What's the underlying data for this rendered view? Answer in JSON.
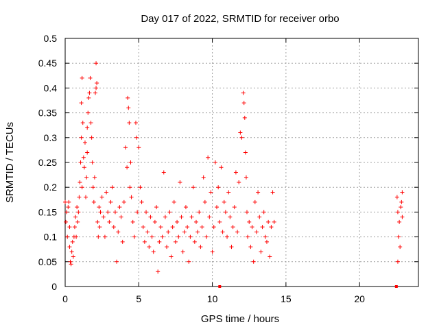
{
  "chart_data": {
    "type": "scatter",
    "title": "Day 017 of 2022, SRMTID for receiver orbo",
    "xlabel": "GPS time / hours",
    "ylabel": "SRMTID / TECUs",
    "xlim": [
      0,
      24
    ],
    "ylim": [
      0,
      0.5
    ],
    "x_ticks": [
      0,
      5,
      10,
      15,
      20
    ],
    "y_ticks": [
      0,
      0.05,
      0.1,
      0.15,
      0.2,
      0.25,
      0.3,
      0.35,
      0.4,
      0.45,
      0.5
    ],
    "x_tick_labels": [
      "0",
      "5",
      "10",
      "15",
      "20"
    ],
    "y_tick_labels": [
      "0",
      "0.05",
      "0.1",
      "0.15",
      "0.2",
      "0.25",
      "0.3",
      "0.35",
      "0.4",
      "0.45",
      "0.5"
    ],
    "grid": true,
    "marker": "+",
    "colors": {
      "points": "#ff0000",
      "grid": "#a0a0a0",
      "axes": "#000000"
    },
    "series": [
      {
        "points": [
          [
            0.0,
            0.17
          ],
          [
            0.05,
            0.13
          ],
          [
            0.1,
            0.15
          ],
          [
            0.15,
            0.1
          ],
          [
            0.2,
            0.16
          ],
          [
            0.25,
            0.17
          ],
          [
            0.3,
            0.12
          ],
          [
            0.3,
            0.08
          ],
          [
            0.35,
            0.05
          ],
          [
            0.4,
            0.045
          ],
          [
            0.45,
            0.07
          ],
          [
            0.5,
            0.09
          ],
          [
            0.55,
            0.06
          ],
          [
            0.6,
            0.1
          ],
          [
            0.65,
            0.12
          ],
          [
            0.7,
            0.14
          ],
          [
            0.75,
            0.1
          ],
          [
            0.8,
            0.16
          ],
          [
            0.85,
            0.13
          ],
          [
            0.9,
            0.15
          ],
          [
            0.95,
            0.18
          ],
          [
            1.0,
            0.21
          ],
          [
            1.05,
            0.25
          ],
          [
            1.1,
            0.3
          ],
          [
            1.1,
            0.37
          ],
          [
            1.15,
            0.42
          ],
          [
            1.15,
            0.2
          ],
          [
            1.2,
            0.33
          ],
          [
            1.25,
            0.26
          ],
          [
            1.3,
            0.24
          ],
          [
            1.35,
            0.29
          ],
          [
            1.4,
            0.18
          ],
          [
            1.45,
            0.22
          ],
          [
            1.5,
            0.27
          ],
          [
            1.5,
            0.32
          ],
          [
            1.55,
            0.35
          ],
          [
            1.6,
            0.38
          ],
          [
            1.65,
            0.39
          ],
          [
            1.7,
            0.42
          ],
          [
            1.75,
            0.33
          ],
          [
            1.8,
            0.3
          ],
          [
            1.85,
            0.25
          ],
          [
            1.9,
            0.2
          ],
          [
            1.95,
            0.17
          ],
          [
            2.0,
            0.22
          ],
          [
            2.05,
            0.39
          ],
          [
            2.1,
            0.4
          ],
          [
            2.1,
            0.45
          ],
          [
            2.15,
            0.41
          ],
          [
            2.2,
            0.13
          ],
          [
            2.25,
            0.1
          ],
          [
            2.3,
            0.16
          ],
          [
            2.35,
            0.12
          ],
          [
            2.4,
            0.15
          ],
          [
            2.5,
            0.18
          ],
          [
            2.6,
            0.14
          ],
          [
            2.7,
            0.1
          ],
          [
            2.8,
            0.19
          ],
          [
            2.9,
            0.15
          ],
          [
            3.0,
            0.13
          ],
          [
            3.1,
            0.17
          ],
          [
            3.2,
            0.2
          ],
          [
            3.3,
            0.12
          ],
          [
            3.4,
            0.15
          ],
          [
            3.5,
            0.05
          ],
          [
            3.6,
            0.11
          ],
          [
            3.7,
            0.16
          ],
          [
            3.8,
            0.14
          ],
          [
            3.9,
            0.09
          ],
          [
            4.0,
            0.17
          ],
          [
            4.1,
            0.28
          ],
          [
            4.2,
            0.24
          ],
          [
            4.25,
            0.38
          ],
          [
            4.3,
            0.36
          ],
          [
            4.35,
            0.33
          ],
          [
            4.4,
            0.2
          ],
          [
            4.45,
            0.25
          ],
          [
            4.5,
            0.18
          ],
          [
            4.6,
            0.13
          ],
          [
            4.7,
            0.1
          ],
          [
            4.8,
            0.33
          ],
          [
            4.85,
            0.3
          ],
          [
            4.9,
            0.15
          ],
          [
            5.0,
            0.28
          ],
          [
            5.1,
            0.2
          ],
          [
            5.2,
            0.17
          ],
          [
            5.3,
            0.12
          ],
          [
            5.4,
            0.09
          ],
          [
            5.5,
            0.15
          ],
          [
            5.6,
            0.11
          ],
          [
            5.7,
            0.08
          ],
          [
            5.8,
            0.14
          ],
          [
            5.9,
            0.1
          ],
          [
            6.0,
            0.07
          ],
          [
            6.1,
            0.13
          ],
          [
            6.2,
            0.16
          ],
          [
            6.3,
            0.03
          ],
          [
            6.4,
            0.09
          ],
          [
            6.5,
            0.12
          ],
          [
            6.6,
            0.1
          ],
          [
            6.7,
            0.23
          ],
          [
            6.8,
            0.14
          ],
          [
            6.9,
            0.08
          ],
          [
            7.0,
            0.11
          ],
          [
            7.1,
            0.15
          ],
          [
            7.2,
            0.06
          ],
          [
            7.3,
            0.12
          ],
          [
            7.4,
            0.17
          ],
          [
            7.5,
            0.09
          ],
          [
            7.6,
            0.13
          ],
          [
            7.7,
            0.1
          ],
          [
            7.8,
            0.21
          ],
          [
            7.9,
            0.14
          ],
          [
            8.0,
            0.07
          ],
          [
            8.1,
            0.11
          ],
          [
            8.2,
            0.16
          ],
          [
            8.3,
            0.12
          ],
          [
            8.4,
            0.05
          ],
          [
            8.5,
            0.1
          ],
          [
            8.6,
            0.14
          ],
          [
            8.7,
            0.2
          ],
          [
            8.8,
            0.09
          ],
          [
            8.9,
            0.13
          ],
          [
            9.0,
            0.11
          ],
          [
            9.1,
            0.15
          ],
          [
            9.2,
            0.08
          ],
          [
            9.3,
            0.12
          ],
          [
            9.4,
            0.22
          ],
          [
            9.5,
            0.17
          ],
          [
            9.6,
            0.1
          ],
          [
            9.7,
            0.26
          ],
          [
            9.8,
            0.14
          ],
          [
            9.9,
            0.19
          ],
          [
            10.0,
            0.07
          ],
          [
            10.1,
            0.12
          ],
          [
            10.2,
            0.25
          ],
          [
            10.3,
            0.16
          ],
          [
            10.4,
            0.2
          ],
          [
            10.5,
            0.13
          ],
          [
            10.6,
            0.24
          ],
          [
            10.7,
            0.11
          ],
          [
            10.8,
            0.17
          ],
          [
            10.9,
            0.15
          ],
          [
            11.0,
            0.1
          ],
          [
            11.1,
            0.19
          ],
          [
            11.2,
            0.14
          ],
          [
            11.3,
            0.08
          ],
          [
            11.4,
            0.12
          ],
          [
            11.5,
            0.16
          ],
          [
            11.6,
            0.23
          ],
          [
            11.7,
            0.11
          ],
          [
            11.8,
            0.21
          ],
          [
            11.9,
            0.31
          ],
          [
            12.0,
            0.3
          ],
          [
            12.1,
            0.39
          ],
          [
            12.15,
            0.37
          ],
          [
            12.2,
            0.34
          ],
          [
            12.25,
            0.27
          ],
          [
            12.3,
            0.22
          ],
          [
            12.35,
            0.15
          ],
          [
            12.4,
            0.1
          ],
          [
            12.5,
            0.13
          ],
          [
            12.6,
            0.08
          ],
          [
            12.7,
            0.12
          ],
          [
            12.8,
            0.05
          ],
          [
            12.9,
            0.17
          ],
          [
            13.0,
            0.11
          ],
          [
            13.1,
            0.19
          ],
          [
            13.2,
            0.14
          ],
          [
            13.3,
            0.07
          ],
          [
            13.4,
            0.12
          ],
          [
            13.5,
            0.15
          ],
          [
            13.6,
            0.1
          ],
          [
            13.7,
            0.09
          ],
          [
            13.8,
            0.13
          ],
          [
            13.9,
            0.06
          ],
          [
            14.0,
            0.12
          ],
          [
            14.1,
            0.19
          ],
          [
            14.2,
            0.13
          ],
          [
            22.55,
            0.18
          ],
          [
            22.6,
            0.15
          ],
          [
            22.6,
            0.05
          ],
          [
            22.65,
            0.1
          ],
          [
            22.7,
            0.13
          ],
          [
            22.75,
            0.08
          ],
          [
            22.8,
            0.16
          ],
          [
            22.85,
            0.17
          ],
          [
            22.9,
            0.19
          ],
          [
            22.9,
            0.14
          ]
        ]
      }
    ],
    "axis_markers_x": [
      10.5,
      22.5
    ]
  }
}
